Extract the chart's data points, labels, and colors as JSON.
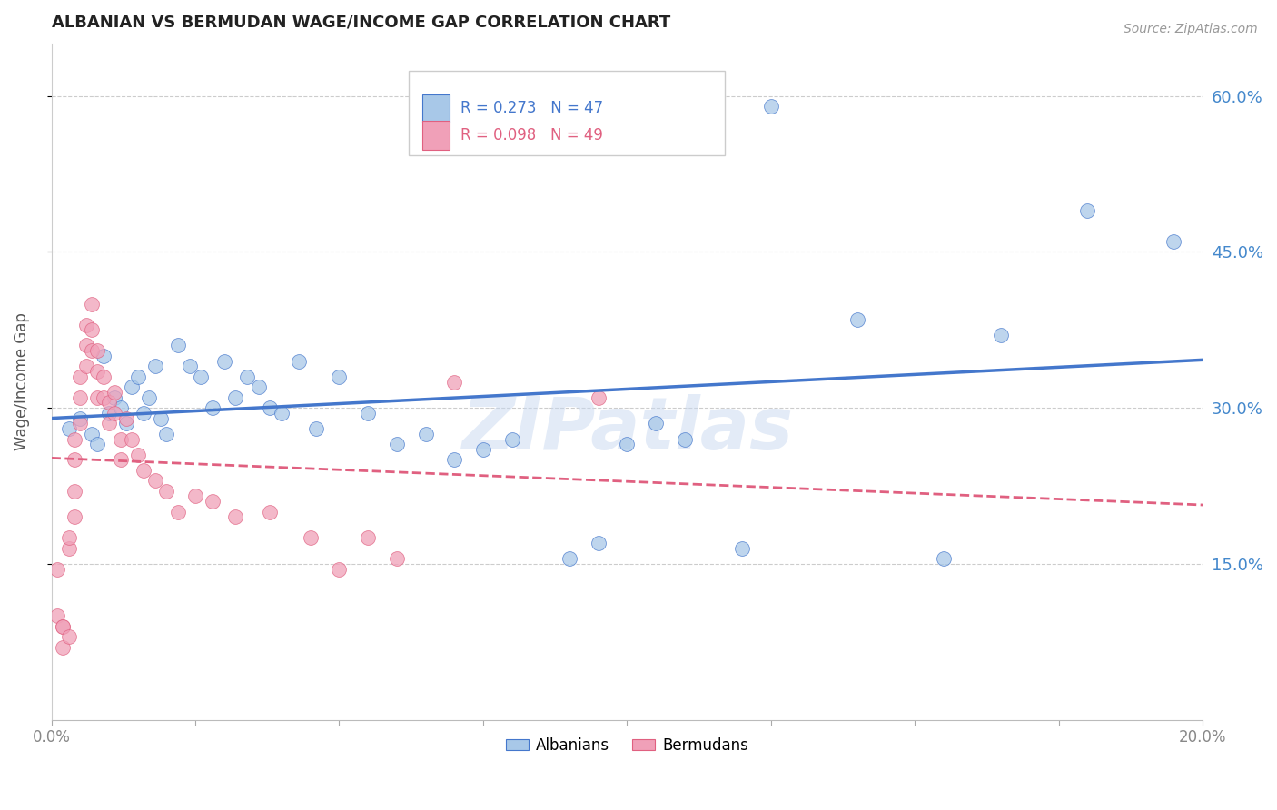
{
  "title": "ALBANIAN VS BERMUDAN WAGE/INCOME GAP CORRELATION CHART",
  "source": "Source: ZipAtlas.com",
  "ylabel": "Wage/Income Gap",
  "ytick_labels": [
    "60.0%",
    "45.0%",
    "30.0%",
    "15.0%"
  ],
  "ytick_values": [
    0.6,
    0.45,
    0.3,
    0.15
  ],
  "xlim": [
    0.0,
    0.2
  ],
  "ylim": [
    0.0,
    0.65
  ],
  "legend_blue_r": "R = 0.273",
  "legend_blue_n": "N = 47",
  "legend_pink_r": "R = 0.098",
  "legend_pink_n": "N = 49",
  "blue_color": "#A8C8E8",
  "pink_color": "#F0A0B8",
  "line_blue": "#4477CC",
  "line_pink": "#E06080",
  "albanians_x": [
    0.003,
    0.005,
    0.007,
    0.008,
    0.009,
    0.01,
    0.011,
    0.012,
    0.013,
    0.014,
    0.015,
    0.016,
    0.017,
    0.018,
    0.019,
    0.02,
    0.022,
    0.024,
    0.026,
    0.028,
    0.03,
    0.032,
    0.034,
    0.036,
    0.038,
    0.04,
    0.043,
    0.046,
    0.05,
    0.055,
    0.06,
    0.065,
    0.07,
    0.075,
    0.08,
    0.09,
    0.095,
    0.1,
    0.105,
    0.11,
    0.12,
    0.125,
    0.14,
    0.155,
    0.165,
    0.18,
    0.195
  ],
  "albanians_y": [
    0.28,
    0.29,
    0.275,
    0.265,
    0.35,
    0.295,
    0.31,
    0.3,
    0.285,
    0.32,
    0.33,
    0.295,
    0.31,
    0.34,
    0.29,
    0.275,
    0.36,
    0.34,
    0.33,
    0.3,
    0.345,
    0.31,
    0.33,
    0.32,
    0.3,
    0.295,
    0.345,
    0.28,
    0.33,
    0.295,
    0.265,
    0.275,
    0.25,
    0.26,
    0.27,
    0.155,
    0.17,
    0.265,
    0.285,
    0.27,
    0.165,
    0.59,
    0.385,
    0.155,
    0.37,
    0.49,
    0.46
  ],
  "bermudans_x": [
    0.001,
    0.001,
    0.002,
    0.002,
    0.002,
    0.003,
    0.003,
    0.003,
    0.004,
    0.004,
    0.004,
    0.004,
    0.005,
    0.005,
    0.005,
    0.006,
    0.006,
    0.006,
    0.007,
    0.007,
    0.007,
    0.008,
    0.008,
    0.008,
    0.009,
    0.009,
    0.01,
    0.01,
    0.011,
    0.011,
    0.012,
    0.012,
    0.013,
    0.014,
    0.015,
    0.016,
    0.018,
    0.02,
    0.022,
    0.025,
    0.028,
    0.032,
    0.038,
    0.045,
    0.05,
    0.055,
    0.06,
    0.07,
    0.095
  ],
  "bermudans_y": [
    0.145,
    0.1,
    0.09,
    0.09,
    0.07,
    0.08,
    0.165,
    0.175,
    0.195,
    0.22,
    0.25,
    0.27,
    0.285,
    0.31,
    0.33,
    0.34,
    0.36,
    0.38,
    0.355,
    0.375,
    0.4,
    0.31,
    0.335,
    0.355,
    0.31,
    0.33,
    0.285,
    0.305,
    0.295,
    0.315,
    0.25,
    0.27,
    0.29,
    0.27,
    0.255,
    0.24,
    0.23,
    0.22,
    0.2,
    0.215,
    0.21,
    0.195,
    0.2,
    0.175,
    0.145,
    0.175,
    0.155,
    0.325,
    0.31
  ],
  "watermark": "ZIPatlas",
  "background_color": "#FFFFFF",
  "grid_color": "#CCCCCC"
}
